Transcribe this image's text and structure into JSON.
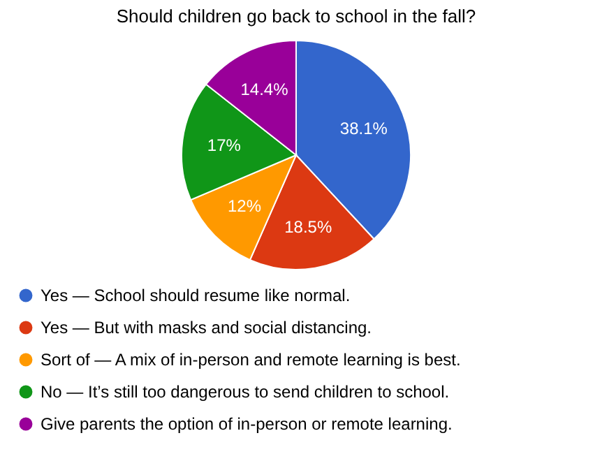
{
  "chart_data": {
    "type": "pie",
    "title": "Should children go back to school in the fall?",
    "categories": [
      "Yes — School should resume like normal.",
      "Yes — But with masks and social distancing.",
      "Sort of — A mix of in-person and remote learning is best.",
      "No — It’s still too dangerous to send children to school.",
      "Give parents the option of in-person or remote learning."
    ],
    "values": [
      38.1,
      18.5,
      12,
      17,
      14.4
    ],
    "colors": [
      "#3366cc",
      "#dc3912",
      "#ff9900",
      "#109618",
      "#990099"
    ],
    "value_labels": [
      "38.1%",
      "18.5%",
      "12%",
      "17%",
      "14.4%"
    ],
    "legend": "bottom"
  }
}
